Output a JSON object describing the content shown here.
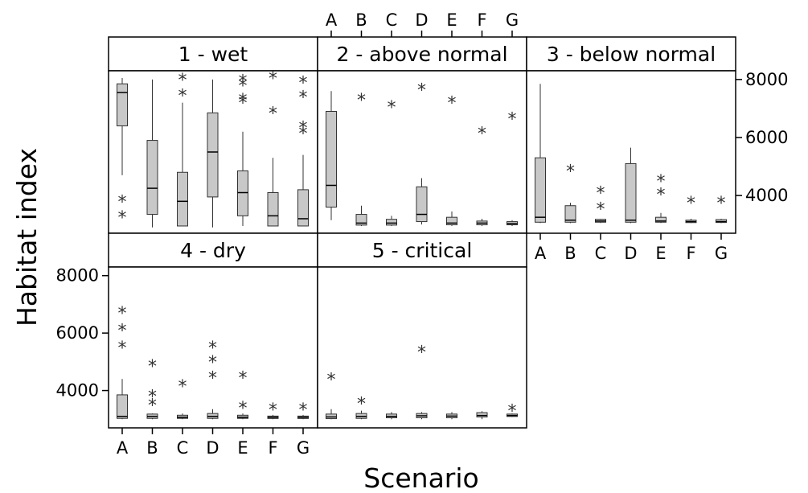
{
  "chart_data": {
    "type": "boxplot",
    "xlabel": "Scenario",
    "ylabel": "Habitat index",
    "categories": [
      "A",
      "B",
      "C",
      "D",
      "E",
      "F",
      "G"
    ],
    "ylim": [
      2700,
      8300
    ],
    "yticks": [
      4000,
      6000,
      8000
    ],
    "colors": {
      "box": "#c8c8c8",
      "line": "#333333"
    },
    "panels": [
      {
        "title": "1 - wet",
        "boxes": [
          {
            "category": "A",
            "min": 4700,
            "q1": 6400,
            "median": 7550,
            "q3": 7850,
            "max": 8050,
            "outliers": [
              3800,
              3250
            ]
          },
          {
            "category": "B",
            "min": 2900,
            "q1": 3350,
            "median": 4250,
            "q3": 5900,
            "max": 8000,
            "outliers": []
          },
          {
            "category": "C",
            "min": 2950,
            "q1": 2950,
            "median": 3800,
            "q3": 4800,
            "max": 7200,
            "outliers": [
              8000,
              7450
            ]
          },
          {
            "category": "D",
            "min": 2900,
            "q1": 3950,
            "median": 5500,
            "q3": 6850,
            "max": 8000,
            "outliers": []
          },
          {
            "category": "E",
            "min": 2950,
            "q1": 3300,
            "median": 4100,
            "q3": 4850,
            "max": 6200,
            "outliers": [
              7950,
              7800,
              7300,
              7200
            ]
          },
          {
            "category": "F",
            "min": 2950,
            "q1": 2950,
            "median": 3300,
            "q3": 4100,
            "max": 5300,
            "outliers": [
              8050,
              6850
            ]
          },
          {
            "category": "G",
            "min": 2950,
            "q1": 2950,
            "median": 3200,
            "q3": 4200,
            "max": 5400,
            "outliers": [
              7900,
              7400,
              6350,
              6150
            ]
          }
        ]
      },
      {
        "title": "2 - above normal",
        "boxes": [
          {
            "category": "A",
            "min": 3150,
            "q1": 3600,
            "median": 4350,
            "q3": 6900,
            "max": 7600,
            "outliers": []
          },
          {
            "category": "B",
            "min": 2950,
            "q1": 2980,
            "median": 3050,
            "q3": 3350,
            "max": 3650,
            "outliers": [
              7300
            ]
          },
          {
            "category": "C",
            "min": 2950,
            "q1": 2980,
            "median": 3050,
            "q3": 3180,
            "max": 3300,
            "outliers": [
              7050
            ]
          },
          {
            "category": "D",
            "min": 3000,
            "q1": 3100,
            "median": 3350,
            "q3": 4300,
            "max": 4600,
            "outliers": [
              7650
            ]
          },
          {
            "category": "E",
            "min": 2950,
            "q1": 2990,
            "median": 3050,
            "q3": 3250,
            "max": 3450,
            "outliers": [
              7200
            ]
          },
          {
            "category": "F",
            "min": 2950,
            "q1": 2990,
            "median": 3050,
            "q3": 3120,
            "max": 3200,
            "outliers": [
              6150
            ]
          },
          {
            "category": "G",
            "min": 2950,
            "q1": 2990,
            "median": 3030,
            "q3": 3100,
            "max": 3150,
            "outliers": [
              6650
            ]
          }
        ]
      },
      {
        "title": "3 - below normal",
        "boxes": [
          {
            "category": "A",
            "min": 3050,
            "q1": 3080,
            "median": 3250,
            "q3": 5300,
            "max": 7850,
            "outliers": []
          },
          {
            "category": "B",
            "min": 3050,
            "q1": 3080,
            "median": 3150,
            "q3": 3650,
            "max": 3750,
            "outliers": [
              4850
            ]
          },
          {
            "category": "C",
            "min": 3050,
            "q1": 3080,
            "median": 3120,
            "q3": 3180,
            "max": 3200,
            "outliers": [
              4100,
              3550
            ]
          },
          {
            "category": "D",
            "min": 3050,
            "q1": 3080,
            "median": 3150,
            "q3": 5100,
            "max": 5650,
            "outliers": []
          },
          {
            "category": "E",
            "min": 3050,
            "q1": 3080,
            "median": 3120,
            "q3": 3250,
            "max": 3400,
            "outliers": [
              4500,
              4050
            ]
          },
          {
            "category": "F",
            "min": 3050,
            "q1": 3070,
            "median": 3100,
            "q3": 3150,
            "max": 3200,
            "outliers": [
              3750
            ]
          },
          {
            "category": "G",
            "min": 3050,
            "q1": 3070,
            "median": 3100,
            "q3": 3170,
            "max": 3200,
            "outliers": [
              3750
            ]
          }
        ]
      },
      {
        "title": "4 - dry",
        "boxes": [
          {
            "category": "A",
            "min": 3000,
            "q1": 3030,
            "median": 3100,
            "q3": 3850,
            "max": 4400,
            "outliers": [
              6700,
              6100,
              5500
            ]
          },
          {
            "category": "B",
            "min": 3000,
            "q1": 3030,
            "median": 3100,
            "q3": 3180,
            "max": 3200,
            "outliers": [
              4850,
              3800,
              3500
            ]
          },
          {
            "category": "C",
            "min": 3000,
            "q1": 3030,
            "median": 3070,
            "q3": 3140,
            "max": 3200,
            "outliers": [
              4150
            ]
          },
          {
            "category": "D",
            "min": 3000,
            "q1": 3030,
            "median": 3100,
            "q3": 3200,
            "max": 3350,
            "outliers": [
              5500,
              5000,
              4450
            ]
          },
          {
            "category": "E",
            "min": 3000,
            "q1": 3030,
            "median": 3070,
            "q3": 3140,
            "max": 3200,
            "outliers": [
              4450,
              3400
            ]
          },
          {
            "category": "F",
            "min": 3000,
            "q1": 3030,
            "median": 3070,
            "q3": 3110,
            "max": 3150,
            "outliers": [
              3350
            ]
          },
          {
            "category": "G",
            "min": 3000,
            "q1": 3030,
            "median": 3070,
            "q3": 3110,
            "max": 3150,
            "outliers": [
              3350
            ]
          }
        ]
      },
      {
        "title": "5 - critical",
        "boxes": [
          {
            "category": "A",
            "min": 3000,
            "q1": 3020,
            "median": 3080,
            "q3": 3180,
            "max": 3350,
            "outliers": [
              4400
            ]
          },
          {
            "category": "B",
            "min": 3000,
            "q1": 3030,
            "median": 3100,
            "q3": 3200,
            "max": 3300,
            "outliers": [
              3550
            ]
          },
          {
            "category": "C",
            "min": 3000,
            "q1": 3050,
            "median": 3100,
            "q3": 3180,
            "max": 3250,
            "outliers": []
          },
          {
            "category": "D",
            "min": 3000,
            "q1": 3050,
            "median": 3120,
            "q3": 3200,
            "max": 3250,
            "outliers": [
              5350
            ]
          },
          {
            "category": "E",
            "min": 3000,
            "q1": 3050,
            "median": 3110,
            "q3": 3180,
            "max": 3250,
            "outliers": []
          },
          {
            "category": "F",
            "min": 3000,
            "q1": 3080,
            "median": 3130,
            "q3": 3230,
            "max": 3280,
            "outliers": []
          },
          {
            "category": "G",
            "min": 3080,
            "q1": 3100,
            "median": 3130,
            "q3": 3180,
            "max": 3200,
            "outliers": [
              3300
            ]
          }
        ]
      }
    ]
  }
}
